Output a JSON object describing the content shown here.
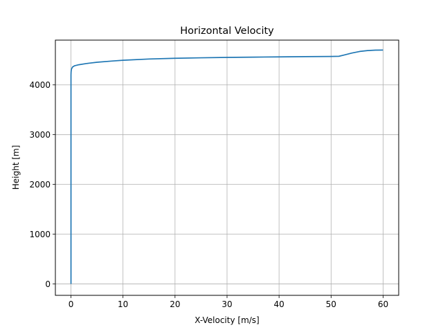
{
  "chart_data": {
    "type": "line",
    "title": "Horizontal Velocity",
    "xlabel": "X-Velocity [m/s]",
    "ylabel": "Height [m]",
    "xlim": [
      -3,
      63
    ],
    "ylim": [
      -230,
      4900
    ],
    "grid": true,
    "legend": "none",
    "x_ticks": [
      0,
      10,
      20,
      30,
      40,
      50,
      60
    ],
    "y_ticks": [
      0,
      1000,
      2000,
      3000,
      4000
    ],
    "line_color": "#1f77b4",
    "series": [
      {
        "x": [
          0,
          0,
          0,
          0,
          0,
          0,
          0.02,
          0.05,
          0.1,
          0.3,
          0.7,
          1.5,
          3,
          5,
          8,
          10,
          15,
          20,
          25,
          30,
          35,
          40,
          45,
          50,
          51.5,
          52.5,
          54,
          55.5,
          57,
          58.5,
          60
        ],
        "y": [
          0,
          1000,
          2000,
          3000,
          4000,
          4200,
          4260,
          4290,
          4320,
          4360,
          4385,
          4405,
          4430,
          4455,
          4480,
          4495,
          4520,
          4535,
          4545,
          4552,
          4558,
          4563,
          4568,
          4572,
          4575,
          4600,
          4640,
          4672,
          4690,
          4698,
          4700
        ]
      }
    ]
  }
}
